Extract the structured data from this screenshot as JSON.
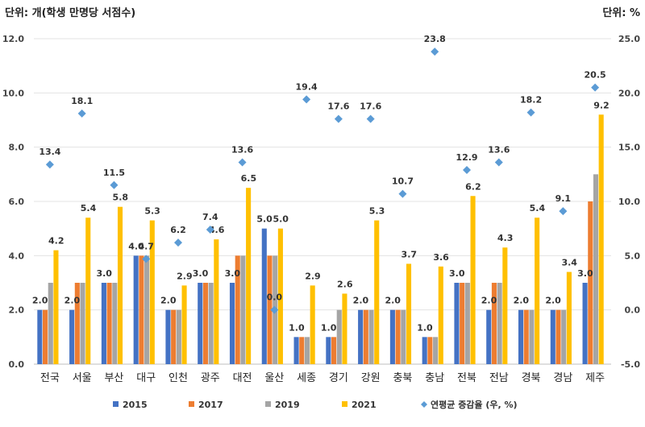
{
  "chart_data": {
    "type": "bar",
    "left_unit_label": "단위: 개(학생 만명당 서점수)",
    "right_unit_label": "단위: %",
    "categories": [
      "전국",
      "서울",
      "부산",
      "대구",
      "인천",
      "광주",
      "대전",
      "울산",
      "세종",
      "경기",
      "강원",
      "충북",
      "충남",
      "전북",
      "전남",
      "경북",
      "경남",
      "제주"
    ],
    "series": [
      {
        "name": "2015",
        "color": "#4472C4",
        "values": [
          2.0,
          2.0,
          3.0,
          4.0,
          2.0,
          3.0,
          3.0,
          5.0,
          1.0,
          1.0,
          2.0,
          2.0,
          1.0,
          3.0,
          2.0,
          2.0,
          2.0,
          3.0
        ]
      },
      {
        "name": "2017",
        "color": "#ED7D31",
        "values": [
          2.0,
          3.0,
          3.0,
          4.0,
          2.0,
          3.0,
          4.0,
          4.0,
          1.0,
          1.0,
          2.0,
          2.0,
          1.0,
          3.0,
          3.0,
          2.0,
          2.0,
          6.0
        ]
      },
      {
        "name": "2019",
        "color": "#A5A5A5",
        "values": [
          3.0,
          3.0,
          3.0,
          4.0,
          2.0,
          3.0,
          4.0,
          4.0,
          1.0,
          2.0,
          2.0,
          2.0,
          1.0,
          3.0,
          3.0,
          2.0,
          2.0,
          7.0
        ]
      },
      {
        "name": "2021",
        "color": "#FFC000",
        "values": [
          4.2,
          5.4,
          5.8,
          5.3,
          2.9,
          4.6,
          6.5,
          5.0,
          2.9,
          2.6,
          5.3,
          3.7,
          3.6,
          6.2,
          4.3,
          5.4,
          3.4,
          9.2
        ]
      }
    ],
    "secondary_series": {
      "name": "연평균 증감율 (우, %)",
      "color": "#5B9BD5",
      "values": [
        13.4,
        18.1,
        11.5,
        4.7,
        6.2,
        7.4,
        13.6,
        0.0,
        19.4,
        17.6,
        17.6,
        10.7,
        23.8,
        12.9,
        13.6,
        18.2,
        9.1,
        20.5
      ]
    },
    "bar_labels_2015": [
      "2.0",
      "2.0",
      "3.0",
      "4.0",
      "2.0",
      "3.0",
      "3.0",
      "5.0",
      "1.0",
      "1.0",
      "2.0",
      "2.0",
      "1.0",
      "3.0",
      "2.0",
      "2.0",
      "2.0",
      "3.0"
    ],
    "bar_labels_2021": [
      "4.2",
      "5.4",
      "5.8",
      "5.3",
      "2.9",
      "4.6",
      "6.5",
      "5.0",
      "2.9",
      "2.6",
      "5.3",
      "3.7",
      "3.6",
      "6.2",
      "4.3",
      "5.4",
      "3.4",
      "9.2"
    ],
    "rate_labels": [
      "13.4",
      "18.1",
      "11.5",
      "4.7",
      "6.2",
      "7.4",
      "13.6",
      "0.0",
      "19.4",
      "17.6",
      "17.6",
      "10.7",
      "23.8",
      "12.9",
      "13.6",
      "18.2",
      "9.1",
      "20.5"
    ],
    "y_left": {
      "min": 0,
      "max": 12,
      "ticks": [
        "0.0",
        "2.0",
        "4.0",
        "6.0",
        "8.0",
        "10.0",
        "12.0"
      ]
    },
    "y_right": {
      "min": -5,
      "max": 25,
      "ticks": [
        "-5.0",
        "0.0",
        "5.0",
        "10.0",
        "15.0",
        "20.0",
        "25.0"
      ]
    },
    "grid": true,
    "legend_position": "bottom"
  }
}
